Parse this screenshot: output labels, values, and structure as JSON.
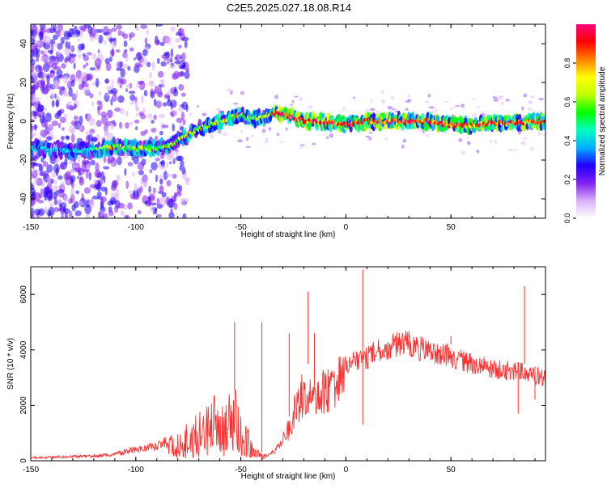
{
  "title": "C2E5.2025.027.18.08.R14",
  "chart_data": [
    {
      "type": "heatmap",
      "xlabel": "Height of straight line (km)",
      "ylabel": "Frequency (Hz)",
      "xlim": [
        -150,
        95
      ],
      "ylim": [
        -50,
        50
      ],
      "xticks": [
        -150,
        -100,
        -50,
        0,
        50
      ],
      "yticks": [
        -40,
        -20,
        0,
        20,
        40
      ],
      "colorbar": {
        "label": "Normalized spectral amplitude",
        "range": [
          0,
          1
        ],
        "ticks": [
          0.0,
          0.2,
          0.4,
          0.6,
          0.8
        ],
        "colormap": [
          "#ffffff",
          "#d8b0f8",
          "#8020f0",
          "#2000ff",
          "#00b0ff",
          "#00ffc0",
          "#00ff00",
          "#c0ff00",
          "#ffff00",
          "#ff8000",
          "#ff0000",
          "#ff0080"
        ]
      },
      "ridge": {
        "x": [
          -150,
          -135,
          -120,
          -110,
          -100,
          -90,
          -85,
          -80,
          -75,
          -70,
          -65,
          -60,
          -55,
          -50,
          -45,
          -40,
          -35,
          -30,
          -25,
          -20,
          -15,
          -10,
          -5,
          0,
          5,
          10,
          20,
          30,
          40,
          50,
          60,
          70,
          80,
          90,
          95
        ],
        "y": [
          -14,
          -15,
          -15,
          -13,
          -14,
          -14,
          -13,
          -10,
          -7,
          -4,
          -2,
          0,
          2,
          3,
          1,
          2,
          4,
          4,
          2,
          0,
          0,
          0,
          -1,
          -2,
          -1,
          0,
          0,
          0,
          0,
          -2,
          -2,
          -1,
          -1,
          0,
          0
        ]
      }
    },
    {
      "type": "line",
      "xlabel": "Height of straight line (km)",
      "ylabel": "SNR (10 * v/v)",
      "xlim": [
        -150,
        95
      ],
      "ylim": [
        0,
        7000
      ],
      "xticks": [
        -150,
        -100,
        -50,
        0,
        50
      ],
      "yticks": [
        0,
        2000,
        4000,
        6000
      ],
      "color": "#ff3030",
      "series": [
        {
          "x": [
            -150,
            -140,
            -130,
            -120,
            -110,
            -105,
            -100,
            -95,
            -90,
            -85,
            -80,
            -75,
            -70,
            -65,
            -60,
            -55,
            -52,
            -50,
            -47,
            -45,
            -42,
            -40,
            -37,
            -35,
            -32,
            -30,
            -27,
            -25,
            -22,
            -20,
            -18,
            -15,
            -12,
            -10,
            -7,
            -5,
            -2,
            0,
            3,
            5,
            8,
            10,
            13,
            15,
            20,
            25,
            30,
            35,
            40,
            45,
            50,
            55,
            60,
            65,
            70,
            75,
            80,
            85,
            90,
            95
          ],
          "y": [
            150,
            170,
            200,
            220,
            300,
            450,
            500,
            600,
            700,
            900,
            1100,
            1500,
            1800,
            2200,
            2500,
            2400,
            2600,
            1800,
            1200,
            800,
            500,
            300,
            250,
            400,
            700,
            1000,
            1600,
            2400,
            3000,
            3300,
            3500,
            2700,
            3200,
            3600,
            3500,
            3700,
            3900,
            3800,
            3900,
            4100,
            4000,
            4100,
            4300,
            4400,
            4500,
            4700,
            4700,
            4500,
            4400,
            4300,
            4200,
            4000,
            3900,
            3800,
            3700,
            3600,
            3600,
            3500,
            3400,
            3300
          ],
          "spikes": [
            {
              "x": -40,
              "y": 5000
            },
            {
              "x": -53,
              "y": 5000
            },
            {
              "x": -27,
              "y": 4600
            },
            {
              "x": -18,
              "y": 6100
            },
            {
              "x": -15,
              "y": 4600
            },
            {
              "x": 8,
              "y": 6900
            },
            {
              "x": 8,
              "y": 1300
            },
            {
              "x": 85,
              "y": 6300
            },
            {
              "x": 82,
              "y": 1700
            },
            {
              "x": 50,
              "y": 4500
            },
            {
              "x": 90,
              "y": 2200
            }
          ]
        }
      ]
    }
  ]
}
